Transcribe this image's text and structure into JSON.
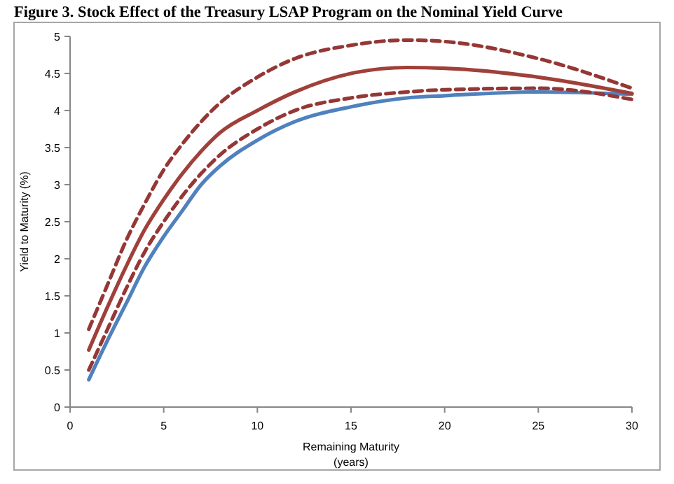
{
  "chart_data": {
    "type": "line",
    "title": "Figure 3.  Stock Effect of the Treasury LSAP Program on the Nominal Yield Curve",
    "xlabel": "Remaining Maturity\n(years)",
    "ylabel": "Yield to Maturity (%)",
    "xlim": [
      0,
      30
    ],
    "xticks": [
      0,
      5,
      10,
      15,
      20,
      25,
      30
    ],
    "ylim": [
      0,
      5
    ],
    "yticks": [
      0,
      0.5,
      1,
      1.5,
      2,
      2.5,
      3,
      3.5,
      4,
      4.5,
      5
    ],
    "grid": false,
    "marker": "none",
    "x": [
      1,
      2,
      3,
      4,
      5,
      6,
      7,
      8,
      10,
      12,
      15,
      18,
      20,
      25,
      30
    ],
    "series": [
      {
        "color": "#4f81bd",
        "line_style": "solid",
        "values": [
          0.37,
          0.9,
          1.4,
          1.9,
          2.3,
          2.65,
          3.0,
          3.25,
          3.6,
          3.85,
          4.05,
          4.17,
          4.2,
          4.25,
          4.22
        ]
      },
      {
        "color": "#953735",
        "line_style": "dashed",
        "values": [
          0.5,
          1.05,
          1.6,
          2.1,
          2.5,
          2.85,
          3.15,
          3.4,
          3.75,
          4.0,
          4.17,
          4.25,
          4.28,
          4.3,
          4.15
        ]
      },
      {
        "color": "#953735",
        "line_style": "dashed",
        "values": [
          1.05,
          1.65,
          2.25,
          2.75,
          3.2,
          3.55,
          3.85,
          4.1,
          4.45,
          4.7,
          4.88,
          4.95,
          4.93,
          4.7,
          4.3
        ]
      },
      {
        "color": "#a0403a",
        "line_style": "solid",
        "values": [
          0.77,
          1.35,
          1.9,
          2.4,
          2.8,
          3.15,
          3.45,
          3.7,
          4.0,
          4.25,
          4.5,
          4.58,
          4.57,
          4.45,
          4.23
        ]
      }
    ]
  }
}
